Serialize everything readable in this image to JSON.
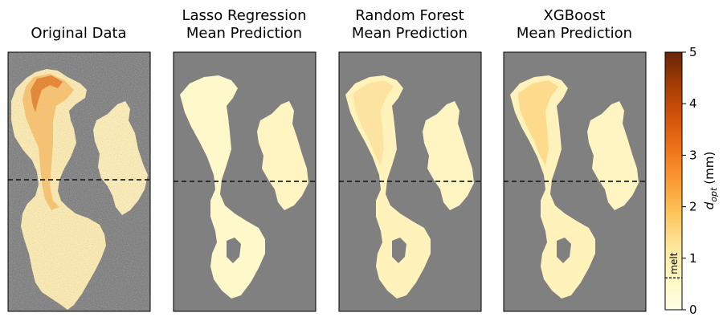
{
  "chart_data": {
    "type": "heatmap",
    "panels": [
      {
        "title_lines": [
          "Original Data"
        ]
      },
      {
        "title_lines": [
          "Lasso Regression",
          "Mean Prediction"
        ]
      },
      {
        "title_lines": [
          "Random Forest",
          "Mean Prediction"
        ]
      },
      {
        "title_lines": [
          "XGBoost",
          "Mean Prediction"
        ]
      }
    ],
    "background_color": "#808080",
    "colorbar": {
      "label": "d_opt (mm)",
      "label_main": "d",
      "label_sub": "opt",
      "label_unit": "(mm)",
      "range": [
        0,
        5
      ],
      "ticks": [
        0,
        1,
        2,
        3,
        4,
        5
      ],
      "colormap": "YlOrBr",
      "threshold": {
        "value": 0.62,
        "label": "melt",
        "style": "dashed"
      }
    },
    "horizontal_reference_line": {
      "style": "dashed",
      "color": "#222222"
    }
  }
}
